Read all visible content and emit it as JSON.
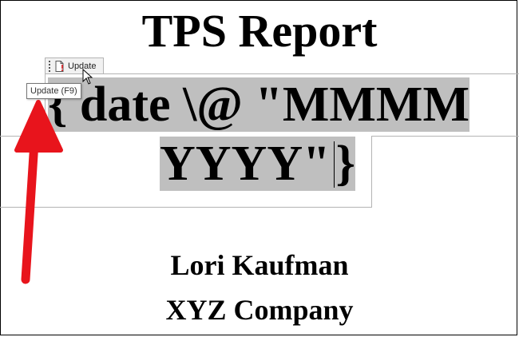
{
  "document": {
    "title": "TPS Report",
    "field_code_line1": "{ date \\@ \"MMMM",
    "field_code_line2_text": "YYYY\"",
    "field_code_line2_brace": "}",
    "author": "Lori Kaufman",
    "company": "XYZ Company"
  },
  "content_control": {
    "tab_label": "Update",
    "tab_icon": "document-exclamation-icon",
    "grip_icon": "drag-handle-icon"
  },
  "tooltip": {
    "text": "Update (F9)"
  },
  "annotation": {
    "arrow_color": "#e8141c"
  },
  "colors": {
    "field_highlight": "#bfbfbf",
    "control_border": "#b4b4b4"
  }
}
